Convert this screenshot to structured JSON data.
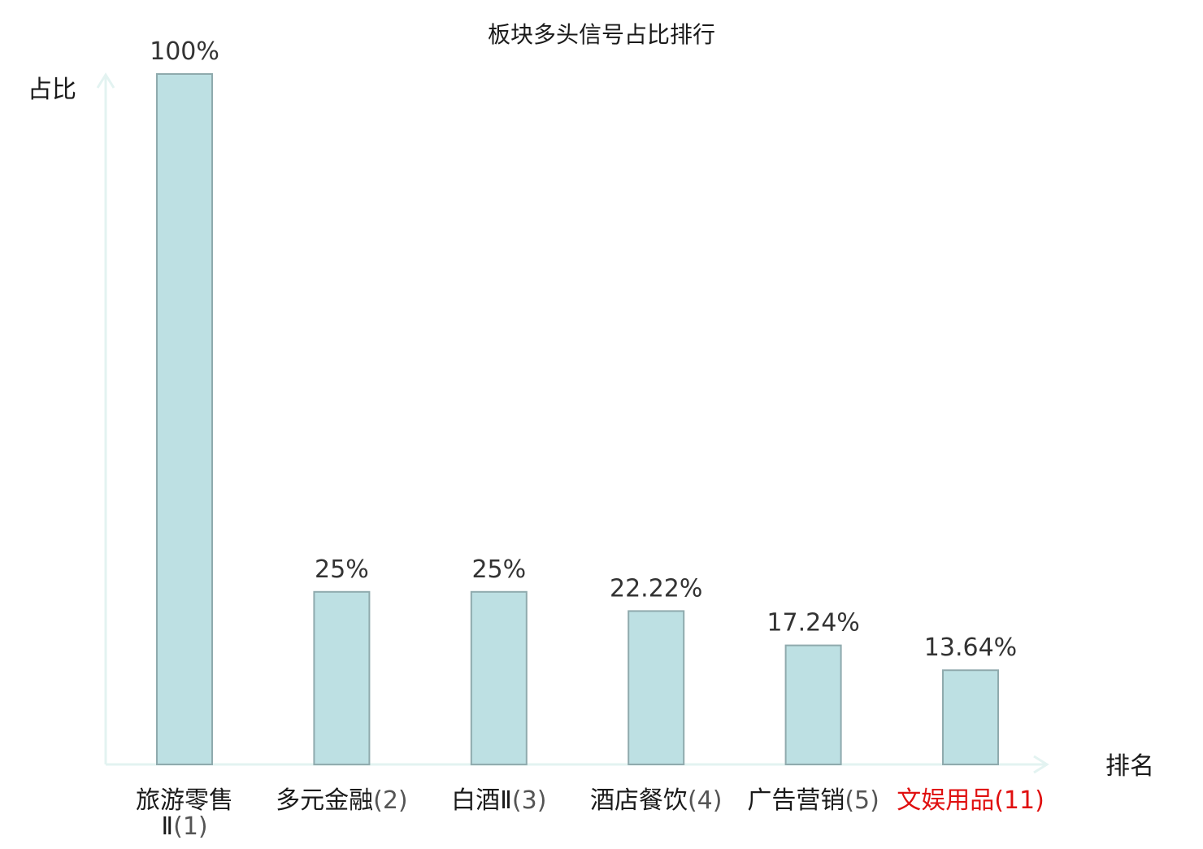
{
  "chart_data": {
    "type": "bar",
    "title": "板块多头信号占比排行",
    "ylabel": "占比",
    "xlabel": "排名",
    "categories": [
      {
        "name": "旅游零售Ⅱ",
        "rank": "(1)",
        "highlight": false
      },
      {
        "name": "多元金融",
        "rank": "(2)",
        "highlight": false
      },
      {
        "name": "白酒Ⅱ",
        "rank": "(3)",
        "highlight": false
      },
      {
        "name": "酒店餐饮",
        "rank": "(4)",
        "highlight": false
      },
      {
        "name": "广告营销",
        "rank": "(5)",
        "highlight": false
      },
      {
        "name": "文娱用品",
        "rank": "(11)",
        "highlight": true
      }
    ],
    "values": [
      100,
      25,
      25,
      22.22,
      17.24,
      13.64
    ],
    "value_labels": [
      "100%",
      "25%",
      "25%",
      "22.22%",
      "17.24%",
      "13.64%"
    ],
    "ylim": [
      0,
      100
    ],
    "grid": false,
    "colors": {
      "bar_fill": "#bde0e3",
      "bar_stroke": "#8faaad",
      "axis": "#e3f3f1",
      "text": "#1a1a1a",
      "value_text": "#333333",
      "rank_text": "#555555",
      "highlight": "#e01010"
    }
  }
}
